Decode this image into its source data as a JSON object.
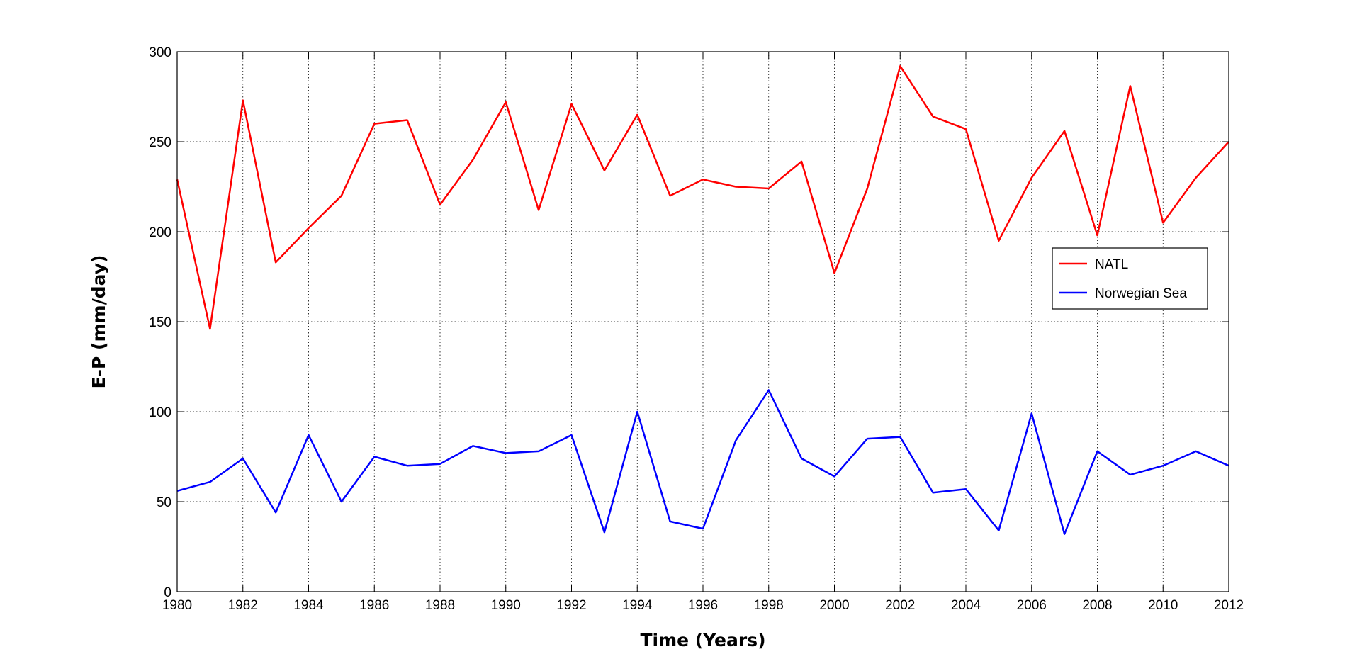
{
  "chart_data": {
    "type": "line",
    "title": "",
    "xlabel": "Time (Years)",
    "ylabel": "E-P (mm/day)",
    "xlim": [
      1980,
      2012
    ],
    "ylim": [
      0,
      300
    ],
    "xticks": [
      1980,
      1982,
      1984,
      1986,
      1988,
      1990,
      1992,
      1994,
      1996,
      1998,
      2000,
      2002,
      2004,
      2006,
      2008,
      2010,
      2012
    ],
    "yticks": [
      0,
      50,
      100,
      150,
      200,
      250,
      300
    ],
    "grid": true,
    "legend_position": "right",
    "x": [
      1980,
      1981,
      1982,
      1983,
      1984,
      1985,
      1986,
      1987,
      1988,
      1989,
      1990,
      1991,
      1992,
      1993,
      1994,
      1995,
      1996,
      1997,
      1998,
      1999,
      2000,
      2001,
      2002,
      2003,
      2004,
      2005,
      2006,
      2007,
      2008,
      2009,
      2010,
      2011,
      2012
    ],
    "series": [
      {
        "name": "NATL",
        "color": "#ff0000",
        "values": [
          229,
          146,
          273,
          183,
          202,
          220,
          260,
          262,
          215,
          240,
          272,
          212,
          271,
          234,
          265,
          220,
          229,
          225,
          224,
          239,
          177,
          224,
          292,
          264,
          257,
          195,
          230,
          256,
          198,
          281,
          205,
          230,
          250
        ]
      },
      {
        "name": "Norwegian Sea",
        "color": "#0000ff",
        "values": [
          56,
          61,
          74,
          44,
          87,
          50,
          75,
          70,
          71,
          81,
          77,
          78,
          87,
          33,
          100,
          39,
          35,
          84,
          112,
          74,
          64,
          85,
          86,
          55,
          57,
          34,
          99,
          32,
          78,
          65,
          70,
          78,
          70
        ]
      }
    ]
  }
}
